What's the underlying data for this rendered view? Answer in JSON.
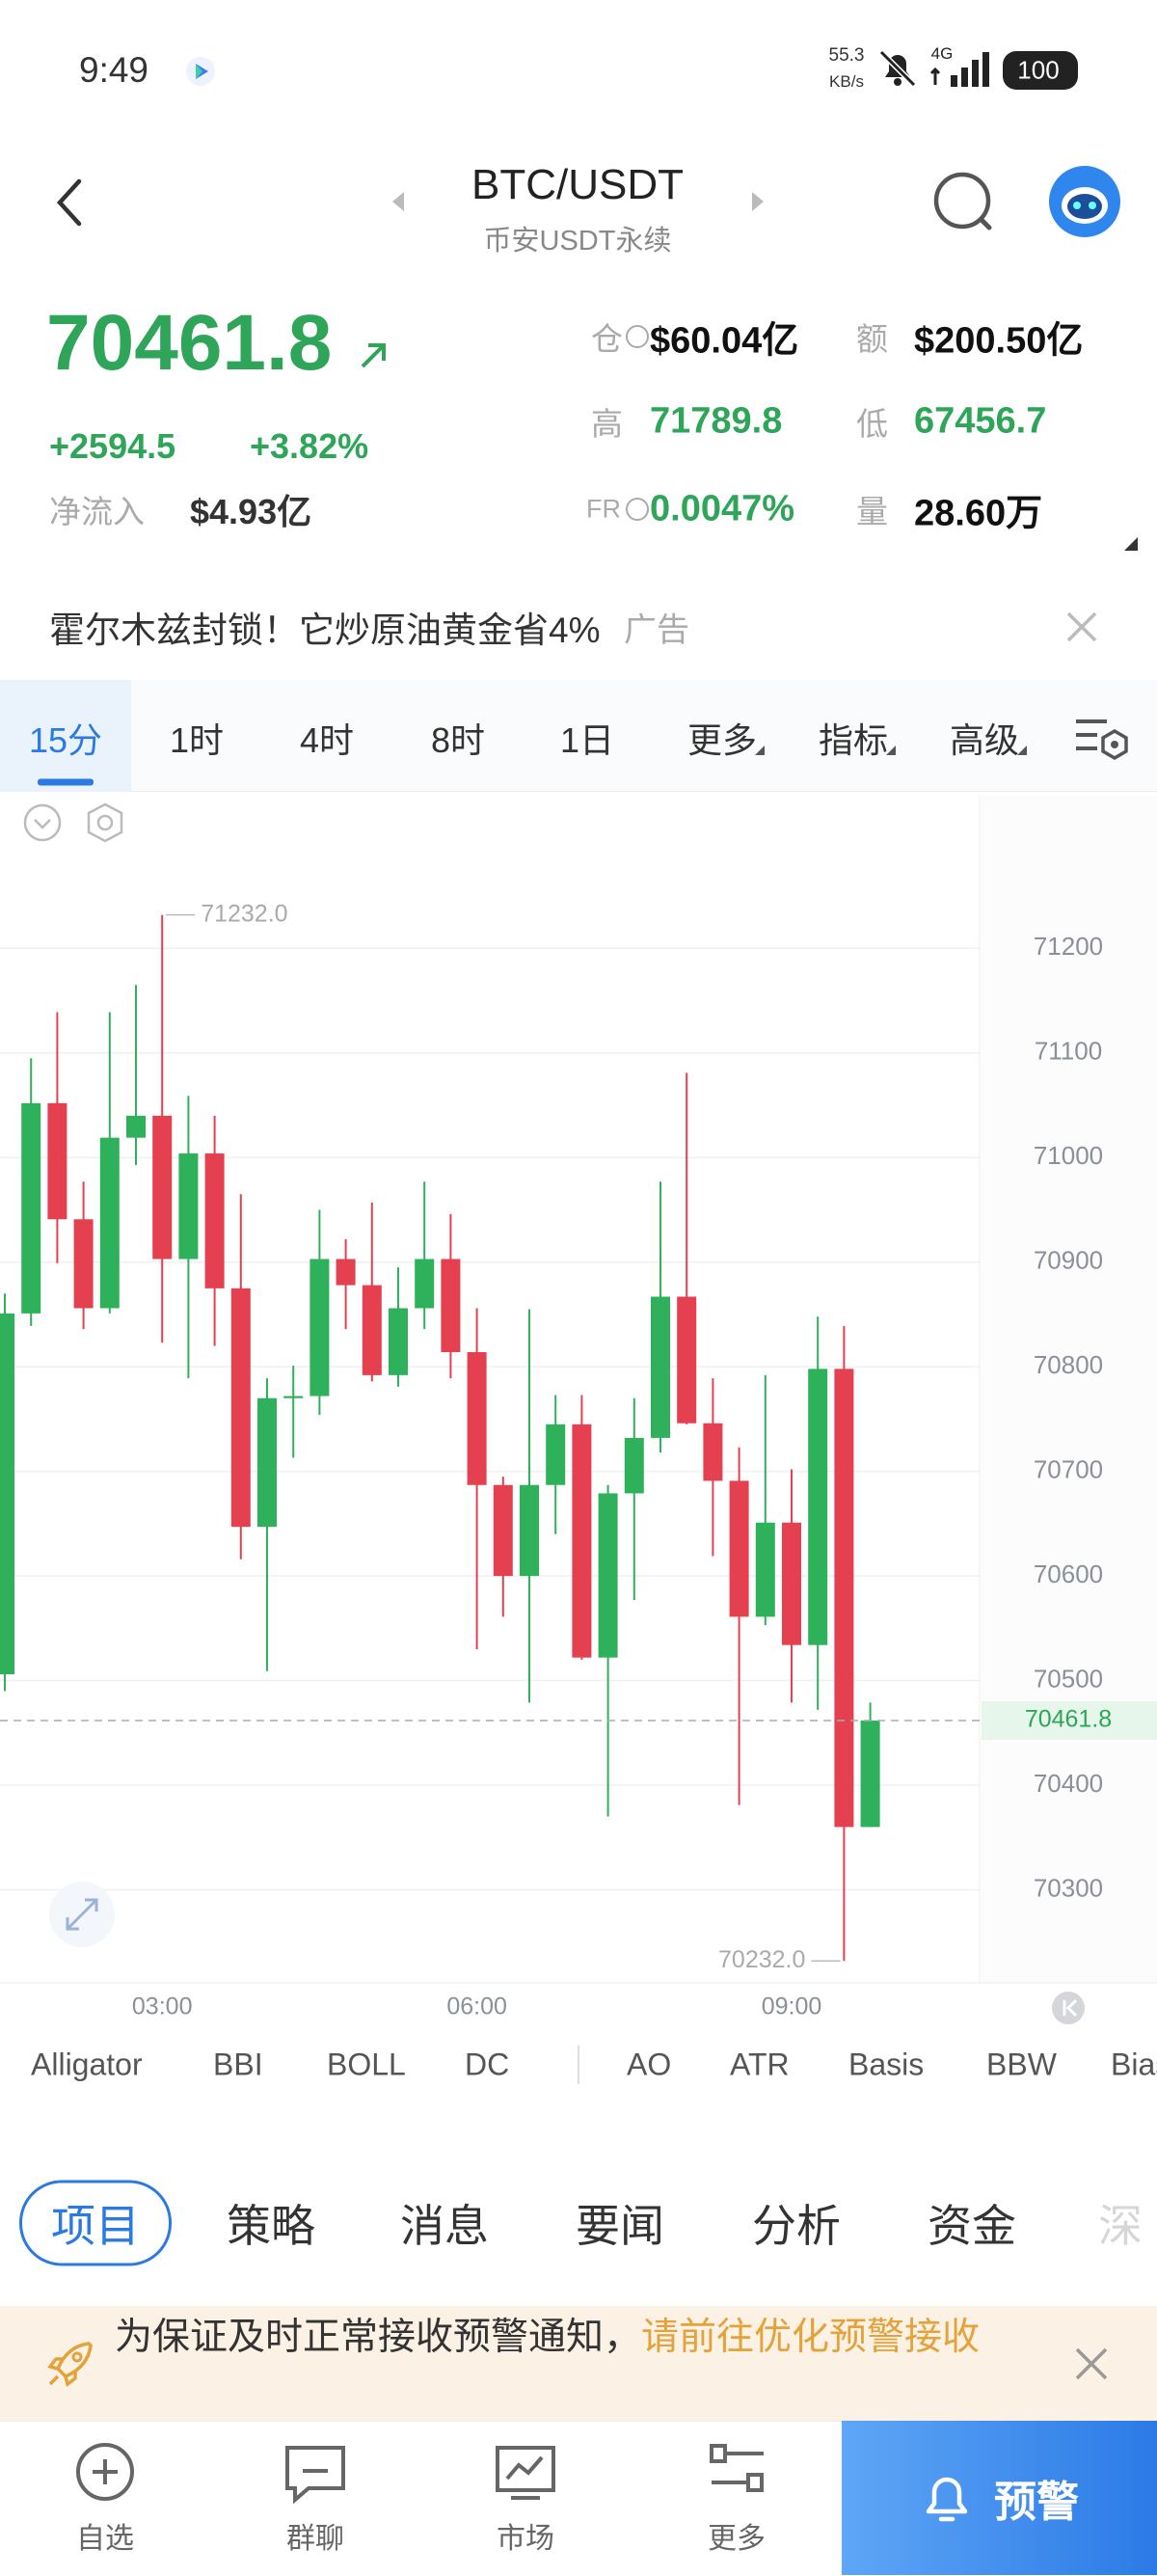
{
  "status_bar": {
    "time": "9:49",
    "speed": "55.3",
    "speed_unit": "KB/s",
    "network": "4G",
    "battery": "100"
  },
  "header": {
    "title": "BTC/USDT",
    "subtitle": "币安USDT永续"
  },
  "ticker": {
    "price": "70461.8",
    "change": "+2594.5",
    "change_pct": "+3.82%",
    "net_inflow_label": "净流入",
    "net_inflow": "$4.93亿",
    "stats": [
      {
        "label": "仓",
        "value": "$60.04亿",
        "color": "#111111"
      },
      {
        "label": "额",
        "value": "$200.50亿",
        "color": "#111111"
      },
      {
        "label": "高",
        "value": "71789.8",
        "color": "#2fa559"
      },
      {
        "label": "低",
        "value": "67456.7",
        "color": "#2fa559"
      },
      {
        "label": "FR",
        "value": "0.0047%",
        "color": "#2fa559"
      },
      {
        "label": "量",
        "value": "28.60万",
        "color": "#111111"
      }
    ]
  },
  "ad": {
    "text": "霍尔木兹封锁！它炒原油黄金省4%",
    "tag": "广告"
  },
  "timeframes": {
    "items": [
      "15分",
      "1时",
      "4时",
      "8时",
      "1日",
      "更多",
      "指标",
      "高级"
    ],
    "selected": 0
  },
  "chart_data": {
    "type": "candlestick",
    "categories": [
      null,
      null,
      null,
      null,
      null,
      null,
      "03:00",
      null,
      null,
      null,
      null,
      null,
      null,
      null,
      null,
      null,
      null,
      null,
      "06:00",
      null,
      null,
      null,
      null,
      null,
      null,
      null,
      null,
      null,
      null,
      null,
      "09:00",
      null,
      null,
      null
    ],
    "open": [
      70506,
      70851,
      71052,
      70941,
      70856,
      71019,
      71040,
      70903,
      71004,
      70875,
      70647,
      70770,
      70772,
      70903,
      70878,
      70792,
      70856,
      70903,
      70814,
      70687,
      70600,
      70687,
      70745,
      70522,
      70679,
      70732,
      70867,
      70746,
      70691,
      70561,
      70651,
      70534,
      70798,
      70360
    ],
    "high": [
      70870,
      71095,
      71139,
      70977,
      71139,
      71165,
      71232,
      71059,
      71040,
      70965,
      70789,
      70801,
      70950,
      70922,
      70957,
      70895,
      70977,
      70946,
      70856,
      70695,
      70855,
      70773,
      70773,
      70687,
      70770,
      70977,
      71081,
      70789,
      70723,
      70792,
      70702,
      70848,
      70839,
      70479
    ],
    "low": [
      70490,
      70839,
      70899,
      70836,
      70851,
      70993,
      70823,
      70789,
      70820,
      70616,
      70509,
      70713,
      70754,
      70836,
      70786,
      70781,
      70836,
      70789,
      70530,
      70561,
      70479,
      70640,
      70520,
      70370,
      70577,
      70718,
      70745,
      70619,
      70381,
      70553,
      70479,
      70472,
      70232,
      70360
    ],
    "close": [
      70851,
      71052,
      70941,
      70856,
      71019,
      71040,
      70903,
      71004,
      70875,
      70647,
      70770,
      70772,
      70903,
      70878,
      70792,
      70856,
      70903,
      70814,
      70687,
      70600,
      70687,
      70745,
      70522,
      70679,
      70732,
      70867,
      70746,
      70691,
      70561,
      70651,
      70534,
      70798,
      70360,
      70461.8
    ],
    "up_color": "#2fb05a",
    "down_color": "#e5404f",
    "ylim": [
      70211,
      71346
    ],
    "yticks": [
      70300,
      70400,
      70500,
      70600,
      70700,
      70800,
      70900,
      71000,
      71100,
      71200
    ],
    "grid": true,
    "last_price": 70461.8,
    "high_marker": {
      "value": 71232,
      "label": "71232.0"
    },
    "low_marker": {
      "value": 70232,
      "label": "70232.0"
    }
  },
  "indicators": [
    "Alligator",
    "BBI",
    "BOLL",
    "DC",
    "AO",
    "ATR",
    "Basis",
    "BBW",
    "Bias"
  ],
  "content_tabs": {
    "items": [
      "项目",
      "策略",
      "消息",
      "要闻",
      "分析",
      "资金",
      "深"
    ],
    "selected": 0
  },
  "notice": {
    "text": "为保证及时正常接收预警通知，",
    "link": "请前往优化预警接收"
  },
  "bottom_nav": {
    "items": [
      "自选",
      "群聊",
      "市场",
      "更多"
    ],
    "alert_button": "预警"
  }
}
